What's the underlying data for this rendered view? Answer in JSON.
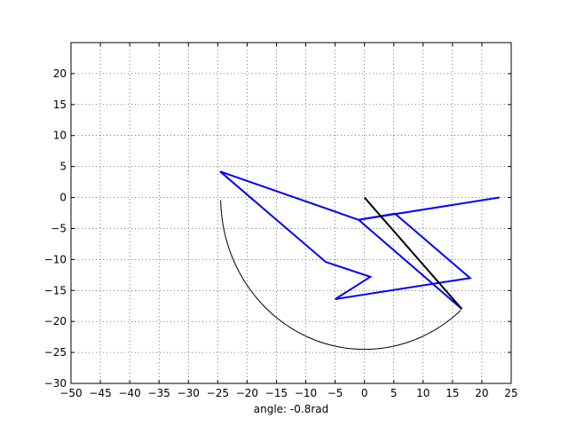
{
  "chart_data": {
    "type": "line",
    "title": "",
    "xlabel": "angle: -0.8rad",
    "ylabel": "",
    "xlim": [
      -50,
      25
    ],
    "ylim": [
      -30,
      25
    ],
    "xticks": [
      -50,
      -45,
      -40,
      -35,
      -30,
      -25,
      -20,
      -15,
      -10,
      -5,
      0,
      5,
      10,
      15,
      20,
      25
    ],
    "yticks": [
      -30,
      -25,
      -20,
      -15,
      -10,
      -5,
      0,
      5,
      10,
      15,
      20
    ],
    "grid": true,
    "series": [
      {
        "color": "#0000ff",
        "points": [
          [
            23,
            0
          ],
          [
            -1,
            -3.6
          ],
          [
            -24.6,
            4.2
          ],
          [
            -6.6,
            -10.4
          ],
          [
            1,
            -12.8
          ],
          [
            -5,
            -16.4
          ],
          [
            18,
            -13
          ],
          [
            5.2,
            -2.6
          ],
          [
            -1,
            -3.6
          ],
          [
            16.6,
            -18
          ]
        ]
      },
      {
        "color": "#000000",
        "points": [
          [
            0,
            0
          ],
          [
            16.6,
            -18
          ]
        ]
      }
    ],
    "arc": {
      "color": "#000000",
      "center": [
        0,
        0
      ],
      "radius": 24.5,
      "start_deg": 181,
      "end_deg": 312
    }
  }
}
